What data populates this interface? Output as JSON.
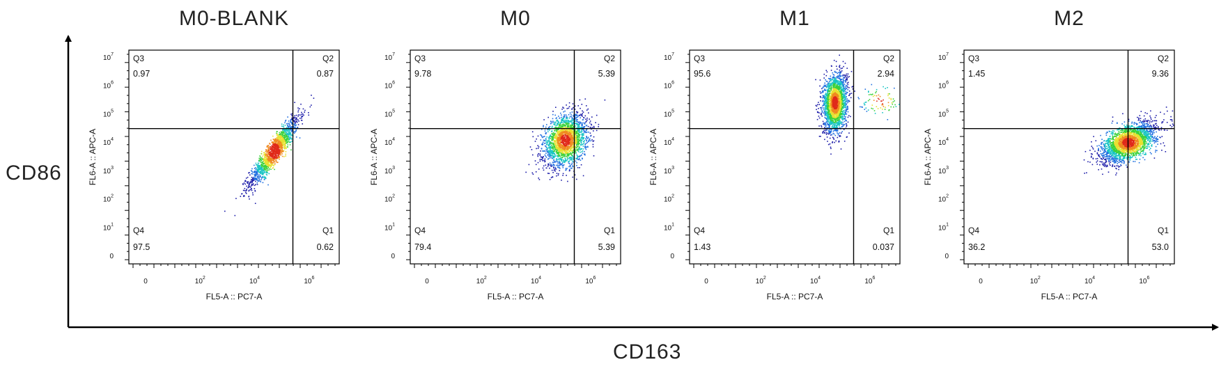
{
  "global_x_label": "CD163",
  "global_y_label": "CD86",
  "colors": {
    "axis": "#000000",
    "density": [
      "#1a1aa8",
      "#1f6fe0",
      "#18c4c4",
      "#3ad13a",
      "#e8e030",
      "#f08a20",
      "#e02a1a"
    ]
  },
  "chart_data": [
    {
      "type": "scatter",
      "title": "M0-BLANK",
      "xlabel": "FL5-A :: PC7-A",
      "ylabel": "FL6-A :: APC-A",
      "x_scale": "biexponential",
      "y_scale": "biexponential",
      "x_ticks": [
        "0",
        "10^2",
        "10^4",
        "10^6"
      ],
      "y_ticks": [
        "0",
        "10^1",
        "10^2",
        "10^3",
        "10^4",
        "10^5",
        "10^6",
        "10^7"
      ],
      "gate": {
        "x": 200000,
        "y": 30000
      },
      "quadrants": [
        {
          "name": "Q3",
          "value": "0.97"
        },
        {
          "name": "Q2",
          "value": "0.87"
        },
        {
          "name": "Q4",
          "value": "97.5"
        },
        {
          "name": "Q1",
          "value": "0.62"
        }
      ],
      "populations": [
        {
          "x_center": 40000,
          "y_center": 5000,
          "log_spread_x": 0.45,
          "log_spread_y": 0.6,
          "correlation": 0.92,
          "events": 1500
        }
      ]
    },
    {
      "type": "scatter",
      "title": "M0",
      "xlabel": "FL5-A :: PC7-A",
      "ylabel": "FL6-A :: APC-A",
      "x_scale": "biexponential",
      "y_scale": "biexponential",
      "x_ticks": [
        "0",
        "10^2",
        "10^4",
        "10^6"
      ],
      "y_ticks": [
        "0",
        "10^1",
        "10^2",
        "10^3",
        "10^4",
        "10^5",
        "10^6",
        "10^7"
      ],
      "gate": {
        "x": 200000,
        "y": 30000
      },
      "quadrants": [
        {
          "name": "Q3",
          "value": "9.78"
        },
        {
          "name": "Q2",
          "value": "5.39"
        },
        {
          "name": "Q4",
          "value": "79.4"
        },
        {
          "name": "Q1",
          "value": "5.39"
        }
      ],
      "populations": [
        {
          "x_center": 90000,
          "y_center": 12000,
          "log_spread_x": 0.4,
          "log_spread_y": 0.45,
          "correlation": 0.3,
          "events": 2200
        }
      ]
    },
    {
      "type": "scatter",
      "title": "M1",
      "xlabel": "FL5-A :: PC7-A",
      "ylabel": "FL6-A :: APC-A",
      "x_scale": "biexponential",
      "y_scale": "biexponential",
      "x_ticks": [
        "0",
        "10^2",
        "10^4",
        "10^6"
      ],
      "y_ticks": [
        "0",
        "10^1",
        "10^2",
        "10^3",
        "10^4",
        "10^5",
        "10^6",
        "10^7"
      ],
      "gate": {
        "x": 200000,
        "y": 30000
      },
      "quadrants": [
        {
          "name": "Q3",
          "value": "95.6"
        },
        {
          "name": "Q2",
          "value": "2.94"
        },
        {
          "name": "Q4",
          "value": "1.43"
        },
        {
          "name": "Q1",
          "value": "0.037"
        }
      ],
      "populations": [
        {
          "x_center": 40000,
          "y_center": 250000,
          "log_spread_x": 0.22,
          "log_spread_y": 0.5,
          "correlation": 0.15,
          "events": 2200
        },
        {
          "x_center": 2000000,
          "y_center": 300000,
          "log_spread_x": 0.4,
          "log_spread_y": 0.3,
          "correlation": 0.0,
          "events": 80
        }
      ]
    },
    {
      "type": "scatter",
      "title": "M2",
      "xlabel": "FL5-A :: PC7-A",
      "ylabel": "FL6-A :: APC-A",
      "x_scale": "biexponential",
      "y_scale": "biexponential",
      "x_ticks": [
        "0",
        "10^2",
        "10^4",
        "10^6"
      ],
      "y_ticks": [
        "0",
        "10^1",
        "10^2",
        "10^3",
        "10^4",
        "10^5",
        "10^6",
        "10^7"
      ],
      "gate": {
        "x": 200000,
        "y": 30000
      },
      "quadrants": [
        {
          "name": "Q3",
          "value": "1.45"
        },
        {
          "name": "Q2",
          "value": "9.36"
        },
        {
          "name": "Q4",
          "value": "36.2"
        },
        {
          "name": "Q1",
          "value": "53.0"
        }
      ],
      "populations": [
        {
          "x_center": 200000,
          "y_center": 10000,
          "log_spread_x": 0.5,
          "log_spread_y": 0.35,
          "correlation": 0.55,
          "events": 2400
        }
      ]
    }
  ]
}
